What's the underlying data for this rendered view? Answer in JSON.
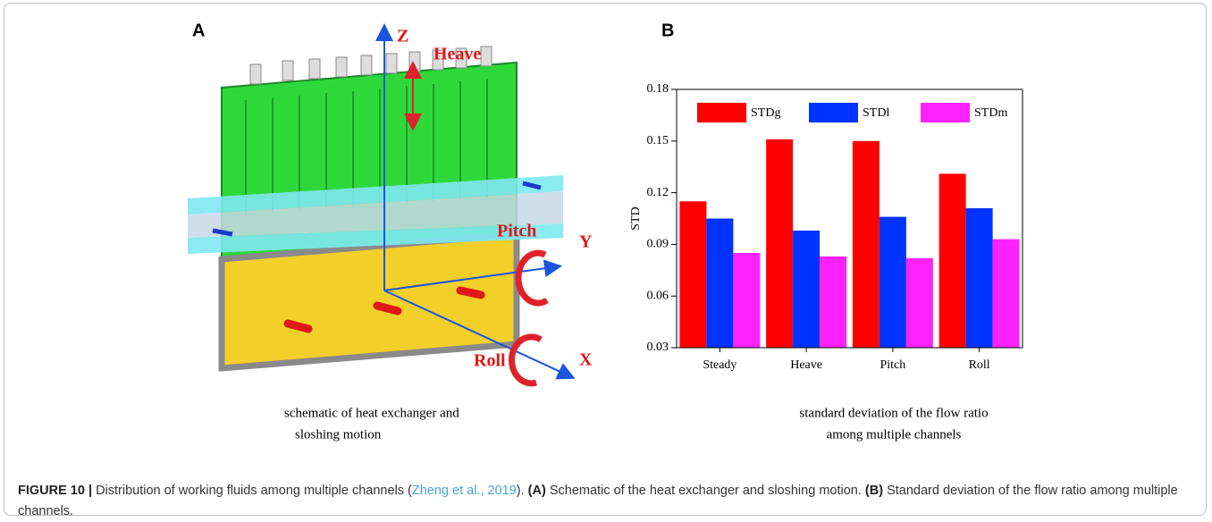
{
  "panel_a": {
    "letter": "A",
    "labels": {
      "z": "Z",
      "heave": "Heave",
      "pitch": "Pitch",
      "y": "Y",
      "roll": "Roll",
      "x": "X"
    },
    "subcaption": [
      "schematic of heat exchanger and",
      "sloshing motion"
    ]
  },
  "panel_b": {
    "letter": "B",
    "subcaption": [
      "standard deviation of the flow ratio",
      "among multiple channels"
    ]
  },
  "chart_data": {
    "type": "bar",
    "y_label": "STD",
    "categories": [
      "Steady",
      "Heave",
      "Pitch",
      "Roll"
    ],
    "series": [
      {
        "name": "STDg",
        "color": "#ff0000",
        "values": [
          0.115,
          0.151,
          0.15,
          0.131
        ]
      },
      {
        "name": "STDl",
        "color": "#0033ff",
        "values": [
          0.105,
          0.098,
          0.106,
          0.111
        ]
      },
      {
        "name": "STDm",
        "color": "#ff22ff",
        "values": [
          0.085,
          0.083,
          0.082,
          0.093
        ]
      }
    ],
    "ylim": [
      0.03,
      0.18
    ],
    "yticks": [
      0.03,
      0.06,
      0.09,
      0.12,
      0.15,
      0.18
    ]
  },
  "caption": {
    "label": "FIGURE 10 |",
    "text1": "Distribution of working fluids among multiple channels (",
    "citation": "Zheng et al., 2019",
    "text2": ").",
    "a": "(A)",
    "text3": "Schematic of the heat exchanger and sloshing motion.",
    "b": "(B)",
    "text4": "Standard deviation of the flow ratio among multiple channels."
  }
}
